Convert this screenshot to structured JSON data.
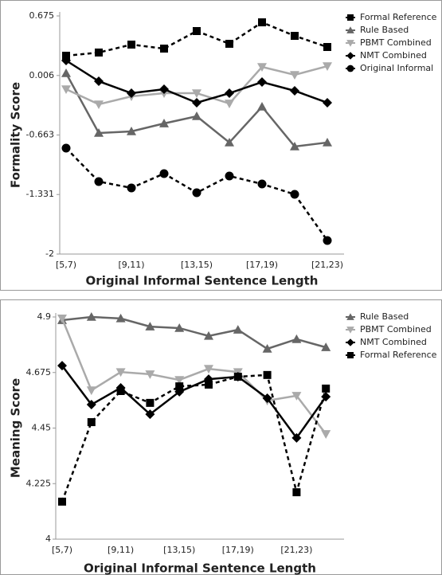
{
  "chart_data": [
    {
      "type": "line",
      "x_label": "Original Informal Sentence Length",
      "y_label": "Formality Score",
      "categories": [
        "[5,7)",
        null,
        "[9,11)",
        null,
        "[13,15)",
        null,
        "[17,19)",
        null,
        "[21,23)"
      ],
      "ylim": [
        -2,
        0.675
      ],
      "yticks": [
        -2,
        -1.331,
        -0.663,
        0.006,
        0.675
      ],
      "legend": "right",
      "series": [
        {
          "name": "Formal Reference",
          "color": "#000000",
          "marker": "square",
          "dash": true,
          "values": [
            0.228,
            0.264,
            0.353,
            0.308,
            0.505,
            0.362,
            0.603,
            0.451,
            0.326
          ]
        },
        {
          "name": "Rule Based",
          "color": "#666666",
          "marker": "triangle",
          "dash": false,
          "values": [
            0.031,
            -0.64,
            -0.622,
            -0.533,
            -0.452,
            -0.747,
            -0.345,
            -0.792,
            -0.747
          ]
        },
        {
          "name": "PBMT Combined",
          "color": "#aaaaaa",
          "marker": "invtriangle",
          "dash": false,
          "values": [
            -0.148,
            -0.318,
            -0.229,
            -0.193,
            -0.193,
            -0.309,
            0.102,
            0.013,
            0.111
          ]
        },
        {
          "name": "NMT Combined",
          "color": "#000000",
          "marker": "diamond",
          "dash": false,
          "values": [
            0.174,
            -0.059,
            -0.193,
            -0.148,
            -0.3,
            -0.193,
            -0.068,
            -0.166,
            -0.3
          ]
        },
        {
          "name": "Original Informal",
          "color": "#000000",
          "marker": "circle",
          "dash": true,
          "values": [
            -0.81,
            -1.186,
            -1.257,
            -1.096,
            -1.311,
            -1.123,
            -1.213,
            -1.329,
            -1.848
          ]
        }
      ]
    },
    {
      "type": "line",
      "x_label": "Original Informal Sentence Length",
      "y_label": "Meaning Score",
      "categories": [
        "[5,7)",
        null,
        "[9,11)",
        null,
        "[13,15)",
        null,
        "[17,19)",
        null,
        "[21,23)",
        null
      ],
      "ylim": [
        4,
        4.9
      ],
      "yticks": [
        4,
        4.225,
        4.45,
        4.675,
        4.9
      ],
      "legend": "right",
      "series": [
        {
          "name": "Rule Based",
          "color": "#666666",
          "marker": "triangle",
          "dash": false,
          "values": [
            4.887,
            4.9,
            4.894,
            4.861,
            4.855,
            4.823,
            4.848,
            4.771,
            4.81,
            4.777
          ]
        },
        {
          "name": "PBMT Combined",
          "color": "#aaaaaa",
          "marker": "invtriangle",
          "dash": false,
          "values": [
            4.894,
            4.603,
            4.677,
            4.668,
            4.645,
            4.69,
            4.677,
            4.561,
            4.581,
            4.426
          ]
        },
        {
          "name": "NMT Combined",
          "color": "#000000",
          "marker": "diamond",
          "dash": false,
          "values": [
            4.703,
            4.545,
            4.613,
            4.506,
            4.597,
            4.648,
            4.658,
            4.571,
            4.41,
            4.577
          ]
        },
        {
          "name": "Formal Reference",
          "color": "#000000",
          "marker": "square",
          "dash": true,
          "values": [
            4.152,
            4.474,
            4.6,
            4.552,
            4.619,
            4.626,
            4.658,
            4.665,
            4.19,
            4.61
          ]
        }
      ]
    }
  ]
}
